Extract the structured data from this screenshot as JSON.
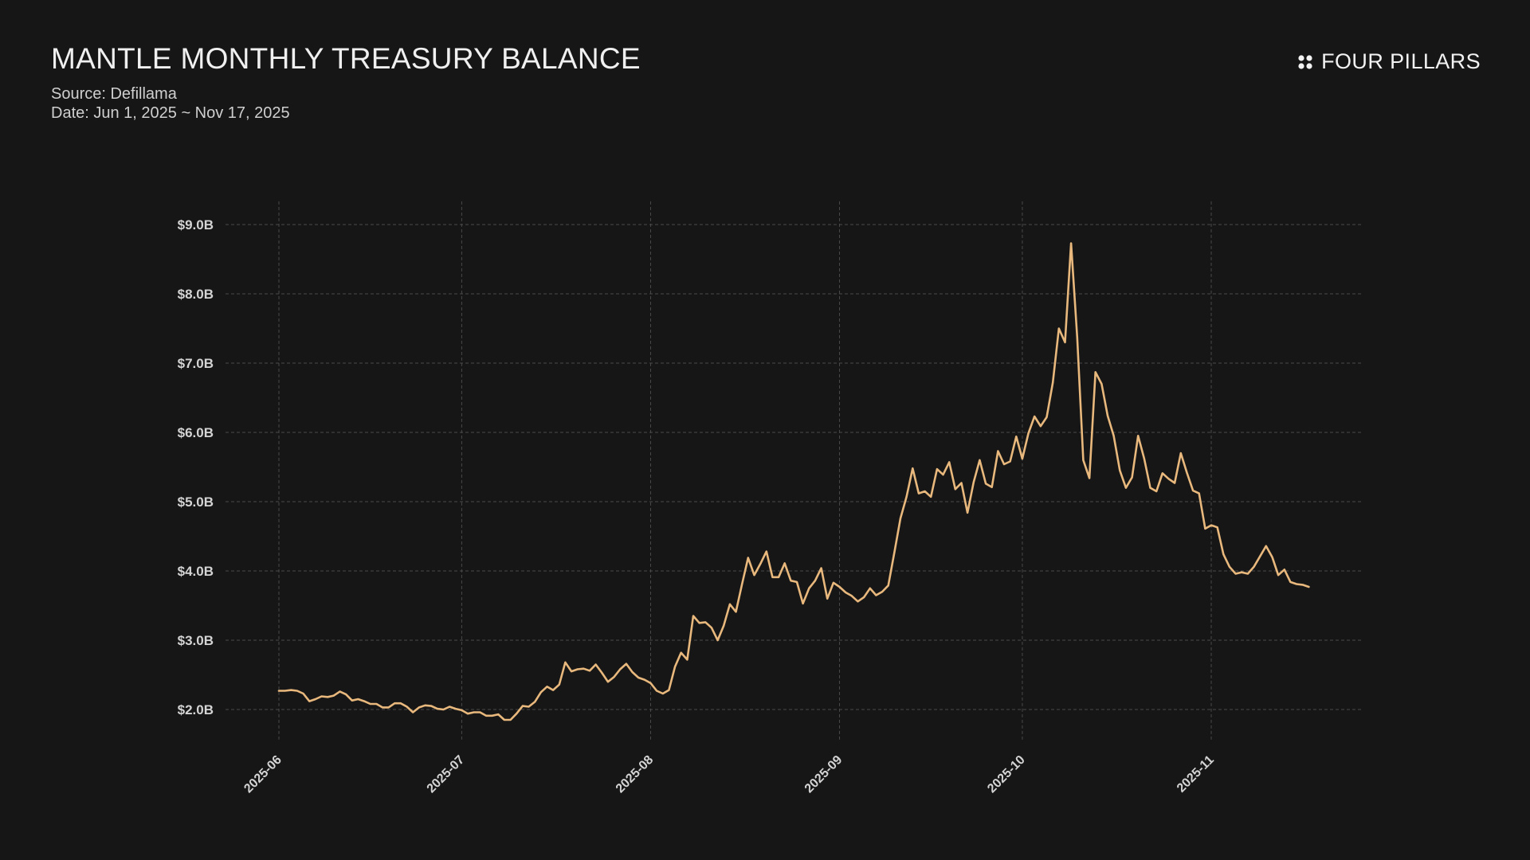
{
  "header": {
    "title": "MANTLE MONTHLY TREASURY BALANCE",
    "source": "Source: Defillama",
    "date": "Date: Jun 1, 2025 ~ Nov 17, 2025"
  },
  "brand": {
    "name": "FOUR PILLARS",
    "icon": "four-dots-logo-icon"
  },
  "colors": {
    "background": "#161616",
    "line": "#e8b87d",
    "grid": "#4a4a4a",
    "tick_text": "#d4d4d4"
  },
  "chart_data": {
    "type": "line",
    "title": "MANTLE MONTHLY TREASURY BALANCE",
    "xlabel": "",
    "ylabel": "",
    "ylim": [
      1.6,
      9.3
    ],
    "xlim": [
      "2025-06-01",
      "2025-11-20"
    ],
    "grid": true,
    "yticks": [
      2,
      3,
      4,
      5,
      6,
      7,
      8,
      9
    ],
    "ytick_labels": [
      "$2.0B",
      "$3.0B",
      "$4.0B",
      "$5.0B",
      "$6.0B",
      "$7.0B",
      "$8.0B",
      "$9.0B"
    ],
    "xticks": [
      "2025-06-01",
      "2025-07-01",
      "2025-08-01",
      "2025-09-01",
      "2025-10-01",
      "2025-11-01"
    ],
    "xtick_labels": [
      "2025-06",
      "2025-07",
      "2025-08",
      "2025-09",
      "2025-10",
      "2025-11"
    ],
    "series": [
      {
        "unit": "$B",
        "x": [
          "2025-06-01",
          "2025-06-02",
          "2025-06-03",
          "2025-06-04",
          "2025-06-05",
          "2025-06-06",
          "2025-06-07",
          "2025-06-08",
          "2025-06-09",
          "2025-06-10",
          "2025-06-11",
          "2025-06-12",
          "2025-06-13",
          "2025-06-14",
          "2025-06-15",
          "2025-06-16",
          "2025-06-17",
          "2025-06-18",
          "2025-06-19",
          "2025-06-20",
          "2025-06-21",
          "2025-06-22",
          "2025-06-23",
          "2025-06-24",
          "2025-06-25",
          "2025-06-26",
          "2025-06-27",
          "2025-06-28",
          "2025-06-29",
          "2025-06-30",
          "2025-07-01",
          "2025-07-02",
          "2025-07-03",
          "2025-07-04",
          "2025-07-05",
          "2025-07-06",
          "2025-07-07",
          "2025-07-08",
          "2025-07-09",
          "2025-07-10",
          "2025-07-11",
          "2025-07-12",
          "2025-07-13",
          "2025-07-14",
          "2025-07-15",
          "2025-07-16",
          "2025-07-17",
          "2025-07-18",
          "2025-07-19",
          "2025-07-20",
          "2025-07-21",
          "2025-07-22",
          "2025-07-23",
          "2025-07-24",
          "2025-07-25",
          "2025-07-26",
          "2025-07-27",
          "2025-07-28",
          "2025-07-29",
          "2025-07-30",
          "2025-07-31",
          "2025-08-01",
          "2025-08-02",
          "2025-08-03",
          "2025-08-04",
          "2025-08-05",
          "2025-08-06",
          "2025-08-07",
          "2025-08-08",
          "2025-08-09",
          "2025-08-10",
          "2025-08-11",
          "2025-08-12",
          "2025-08-13",
          "2025-08-14",
          "2025-08-15",
          "2025-08-16",
          "2025-08-17",
          "2025-08-18",
          "2025-08-19",
          "2025-08-20",
          "2025-08-21",
          "2025-08-22",
          "2025-08-23",
          "2025-08-24",
          "2025-08-25",
          "2025-08-26",
          "2025-08-27",
          "2025-08-28",
          "2025-08-29",
          "2025-08-30",
          "2025-08-31",
          "2025-09-01",
          "2025-09-02",
          "2025-09-03",
          "2025-09-04",
          "2025-09-05",
          "2025-09-06",
          "2025-09-07",
          "2025-09-08",
          "2025-09-09",
          "2025-09-10",
          "2025-09-11",
          "2025-09-12",
          "2025-09-13",
          "2025-09-14",
          "2025-09-15",
          "2025-09-16",
          "2025-09-17",
          "2025-09-18",
          "2025-09-19",
          "2025-09-20",
          "2025-09-21",
          "2025-09-22",
          "2025-09-23",
          "2025-09-24",
          "2025-09-25",
          "2025-09-26",
          "2025-09-27",
          "2025-09-28",
          "2025-09-29",
          "2025-09-30",
          "2025-10-01",
          "2025-10-02",
          "2025-10-03",
          "2025-10-04",
          "2025-10-05",
          "2025-10-06",
          "2025-10-07",
          "2025-10-08",
          "2025-10-09",
          "2025-10-10",
          "2025-10-11",
          "2025-10-12",
          "2025-10-13",
          "2025-10-14",
          "2025-10-15",
          "2025-10-16",
          "2025-10-17",
          "2025-10-18",
          "2025-10-19",
          "2025-10-20",
          "2025-10-21",
          "2025-10-22",
          "2025-10-23",
          "2025-10-24",
          "2025-10-25",
          "2025-10-26",
          "2025-10-27",
          "2025-10-28",
          "2025-10-29",
          "2025-10-30",
          "2025-10-31",
          "2025-11-01",
          "2025-11-02",
          "2025-11-03",
          "2025-11-04",
          "2025-11-05",
          "2025-11-06",
          "2025-11-07",
          "2025-11-08",
          "2025-11-09",
          "2025-11-10",
          "2025-11-11",
          "2025-11-12",
          "2025-11-13",
          "2025-11-14",
          "2025-11-15",
          "2025-11-16",
          "2025-11-17"
        ],
        "values": [
          2.27,
          2.27,
          2.28,
          2.27,
          2.23,
          2.12,
          2.15,
          2.19,
          2.18,
          2.2,
          2.26,
          2.22,
          2.13,
          2.15,
          2.12,
          2.08,
          2.08,
          2.03,
          2.03,
          2.09,
          2.09,
          2.04,
          1.96,
          2.03,
          2.06,
          2.05,
          2.01,
          2.0,
          2.04,
          2.01,
          1.99,
          1.94,
          1.96,
          1.96,
          1.91,
          1.91,
          1.93,
          1.85,
          1.85,
          1.94,
          2.05,
          2.04,
          2.11,
          2.25,
          2.33,
          2.28,
          2.36,
          2.68,
          2.55,
          2.58,
          2.59,
          2.56,
          2.65,
          2.53,
          2.4,
          2.47,
          2.58,
          2.66,
          2.54,
          2.46,
          2.43,
          2.38,
          2.27,
          2.23,
          2.28,
          2.62,
          2.82,
          2.72,
          3.35,
          3.25,
          3.26,
          3.18,
          3.0,
          3.21,
          3.52,
          3.41,
          3.81,
          4.19,
          3.94,
          4.1,
          4.28,
          3.91,
          3.91,
          4.11,
          3.86,
          3.84,
          3.53,
          3.75,
          3.86,
          4.04,
          3.6,
          3.83,
          3.77,
          3.69,
          3.64,
          3.56,
          3.62,
          3.75,
          3.65,
          3.7,
          3.79,
          4.27,
          4.76,
          5.07,
          5.48,
          5.12,
          5.15,
          5.07,
          5.47,
          5.39,
          5.57,
          5.18,
          5.27,
          4.84,
          5.28,
          5.6,
          5.26,
          5.21,
          5.73,
          5.54,
          5.58,
          5.94,
          5.62,
          5.99,
          6.23,
          6.09,
          6.22,
          6.72,
          7.5,
          7.3,
          8.73,
          7.37,
          5.6,
          5.34,
          6.87,
          6.7,
          6.24,
          5.95,
          5.45,
          5.2,
          5.35,
          5.95,
          5.62,
          5.2,
          5.15,
          5.41,
          5.33,
          5.27,
          5.7,
          5.42,
          5.16,
          5.12,
          4.61,
          4.66,
          4.63,
          4.24,
          4.06,
          3.96,
          3.98,
          3.96,
          4.06,
          4.21,
          4.36,
          4.2,
          3.94,
          4.02,
          3.84,
          3.81,
          3.8,
          3.77
        ]
      }
    ]
  }
}
